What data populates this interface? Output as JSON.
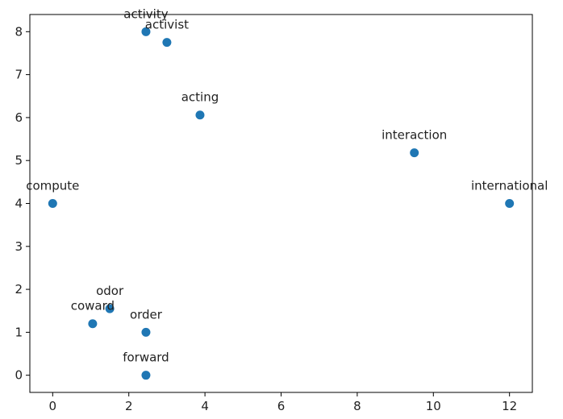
{
  "chart_data": {
    "type": "scatter",
    "title": "",
    "xlabel": "",
    "ylabel": "",
    "xlim": [
      -0.6,
      12.6
    ],
    "ylim": [
      -0.4,
      8.4
    ],
    "x_ticks": [
      0,
      2,
      4,
      6,
      8,
      10,
      12
    ],
    "y_ticks": [
      0,
      1,
      2,
      3,
      4,
      5,
      6,
      7,
      8
    ],
    "grid": false,
    "marker_color": "#1f77b4",
    "points": [
      {
        "label": "activity",
        "x": 2.45,
        "y": 8.0
      },
      {
        "label": "activist",
        "x": 3.0,
        "y": 7.75
      },
      {
        "label": "acting",
        "x": 3.87,
        "y": 6.06
      },
      {
        "label": "interaction",
        "x": 9.5,
        "y": 5.18
      },
      {
        "label": "compute",
        "x": 0.0,
        "y": 4.0
      },
      {
        "label": "international",
        "x": 12.0,
        "y": 4.0
      },
      {
        "label": "odor",
        "x": 1.5,
        "y": 1.55
      },
      {
        "label": "coward",
        "x": 1.05,
        "y": 1.2
      },
      {
        "label": "order",
        "x": 2.45,
        "y": 1.0
      },
      {
        "label": "forward",
        "x": 2.45,
        "y": 0.0
      }
    ]
  }
}
